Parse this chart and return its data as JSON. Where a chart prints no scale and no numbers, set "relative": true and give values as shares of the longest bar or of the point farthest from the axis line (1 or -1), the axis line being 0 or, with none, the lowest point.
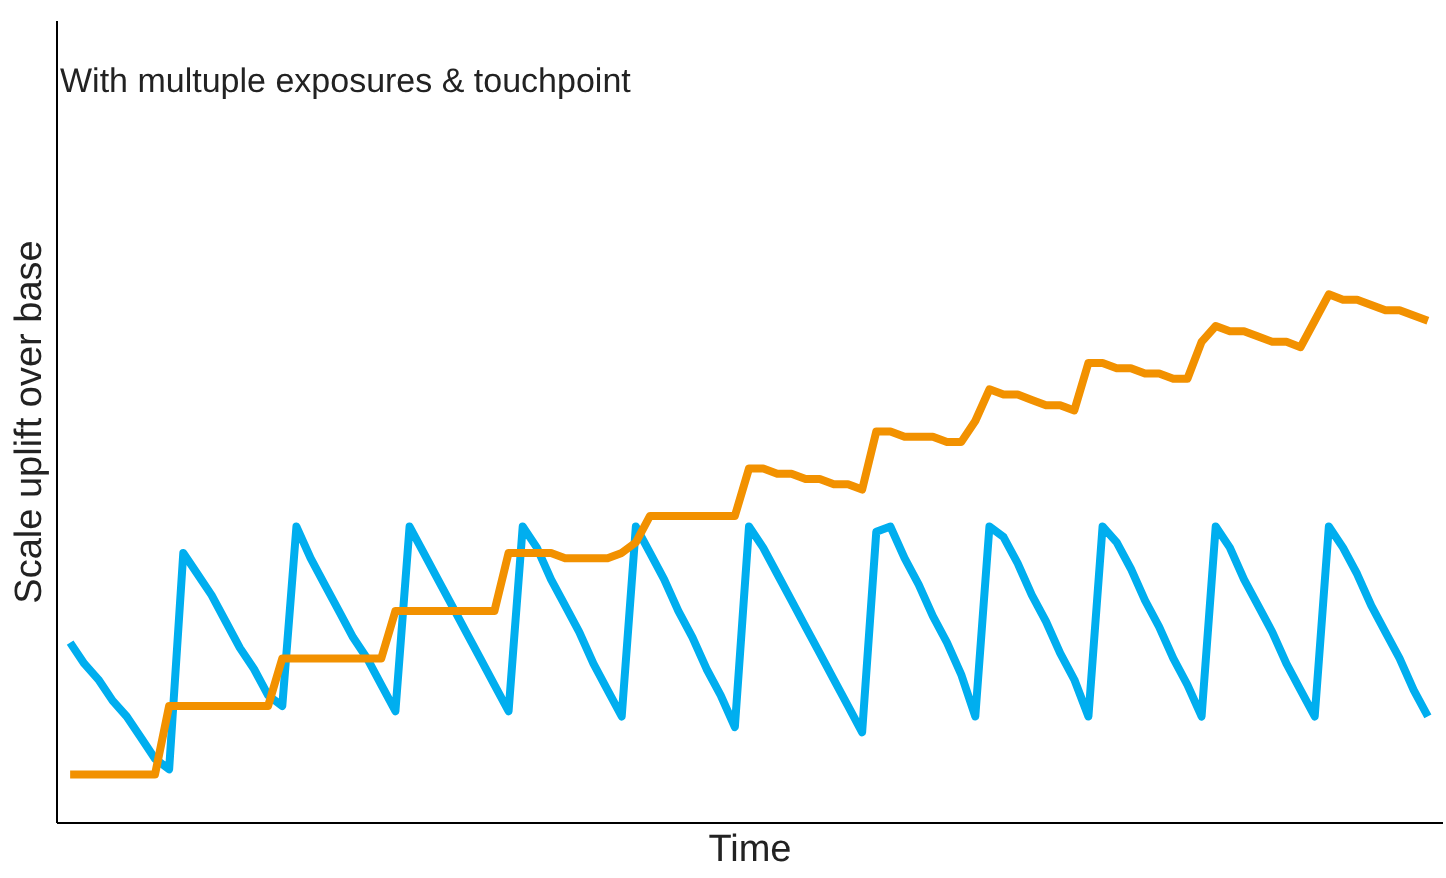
{
  "chart_data": {
    "type": "line",
    "title": "With multuple exposures & touchpoint",
    "xlabel": "Time",
    "ylabel": "Scale uplift over base",
    "relative": true,
    "legend": false,
    "categories": [
      null,
      null,
      null,
      null,
      null,
      null,
      null,
      null,
      null,
      null,
      null,
      null,
      null,
      null,
      null,
      null,
      null,
      null,
      null,
      null,
      null,
      null,
      null,
      null,
      null,
      null,
      null,
      null,
      null,
      null,
      null,
      null,
      null,
      null,
      null,
      null,
      null,
      null,
      null,
      null,
      null,
      null,
      null,
      null,
      null,
      null,
      null,
      null,
      null,
      null,
      null,
      null,
      null,
      null,
      null,
      null,
      null,
      null,
      null,
      null,
      null,
      null,
      null,
      null,
      null,
      null,
      null,
      null,
      null,
      null,
      null,
      null,
      null,
      null,
      null,
      null,
      null,
      null,
      null,
      null,
      null,
      null,
      null,
      null,
      null,
      null,
      null,
      null,
      null,
      null,
      null,
      null,
      null,
      null,
      null,
      null,
      null
    ],
    "series": [
      {
        "color": "#00aeef",
        "values": [
          0.34,
          0.3,
          0.27,
          0.23,
          0.2,
          0.16,
          0.12,
          0.1,
          0.51,
          0.47,
          0.43,
          0.38,
          0.33,
          0.29,
          0.24,
          0.22,
          0.56,
          0.5,
          0.45,
          0.4,
          0.35,
          0.31,
          0.26,
          0.21,
          0.56,
          0.51,
          0.46,
          0.41,
          0.36,
          0.31,
          0.26,
          0.21,
          0.56,
          0.52,
          0.46,
          0.41,
          0.36,
          0.3,
          0.25,
          0.2,
          0.56,
          0.51,
          0.46,
          0.4,
          0.35,
          0.29,
          0.24,
          0.18,
          0.56,
          0.52,
          0.47,
          0.42,
          0.37,
          0.32,
          0.27,
          0.22,
          0.17,
          0.55,
          0.56,
          0.5,
          0.45,
          0.39,
          0.34,
          0.28,
          0.2,
          0.56,
          0.54,
          0.49,
          0.43,
          0.38,
          0.32,
          0.27,
          0.2,
          0.56,
          0.53,
          0.48,
          0.42,
          0.37,
          0.31,
          0.26,
          0.2,
          0.56,
          0.52,
          0.46,
          0.41,
          0.36,
          0.3,
          0.25,
          0.2,
          0.56,
          0.52,
          0.47,
          0.41,
          0.36,
          0.31,
          0.25,
          0.2
        ]
      },
      {
        "color": "#f29100",
        "values": [
          0.09,
          0.09,
          0.09,
          0.09,
          0.09,
          0.09,
          0.09,
          0.22,
          0.22,
          0.22,
          0.22,
          0.22,
          0.22,
          0.22,
          0.22,
          0.31,
          0.31,
          0.31,
          0.31,
          0.31,
          0.31,
          0.31,
          0.31,
          0.4,
          0.4,
          0.4,
          0.4,
          0.4,
          0.4,
          0.4,
          0.4,
          0.51,
          0.51,
          0.51,
          0.51,
          0.5,
          0.5,
          0.5,
          0.5,
          0.51,
          0.53,
          0.58,
          0.58,
          0.58,
          0.58,
          0.58,
          0.58,
          0.58,
          0.67,
          0.67,
          0.66,
          0.66,
          0.65,
          0.65,
          0.64,
          0.64,
          0.63,
          0.74,
          0.74,
          0.73,
          0.73,
          0.73,
          0.72,
          0.72,
          0.76,
          0.82,
          0.81,
          0.81,
          0.8,
          0.79,
          0.79,
          0.78,
          0.87,
          0.87,
          0.86,
          0.86,
          0.85,
          0.85,
          0.84,
          0.84,
          0.91,
          0.94,
          0.93,
          0.93,
          0.92,
          0.91,
          0.91,
          0.9,
          0.95,
          1,
          0.99,
          0.99,
          0.98,
          0.97,
          0.97,
          0.96,
          0.95
        ]
      }
    ]
  }
}
